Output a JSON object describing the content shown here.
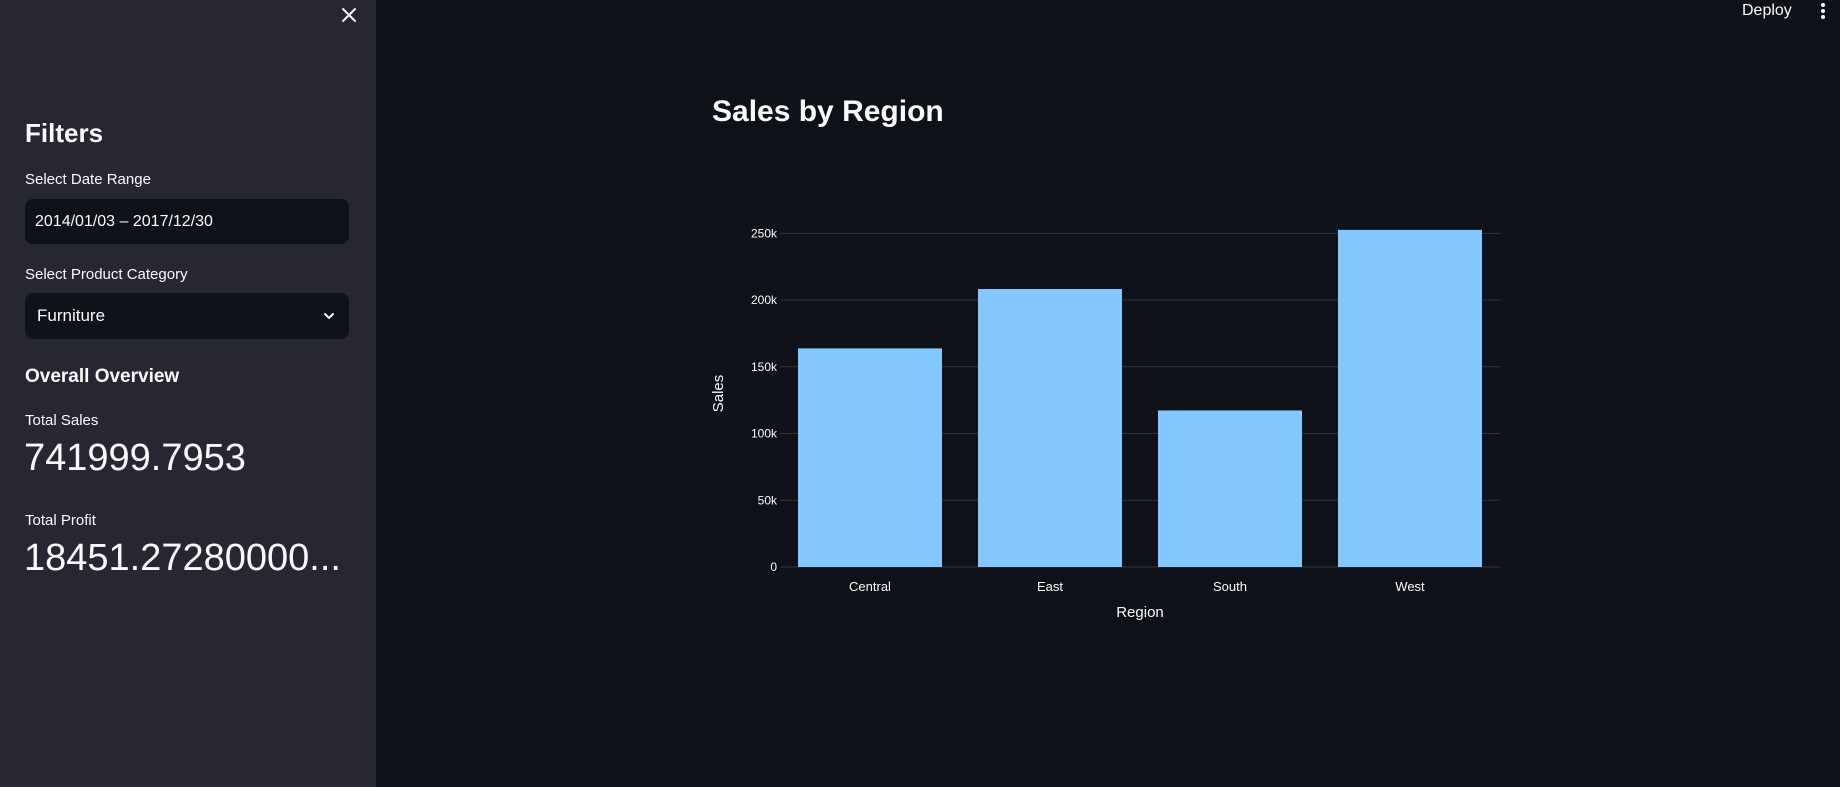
{
  "sidebar": {
    "heading": "Filters",
    "date_range": {
      "label": "Select Date Range",
      "value": "2014/01/03 – 2017/12/30"
    },
    "category": {
      "label": "Select Product Category",
      "selected": "Furniture"
    },
    "overview": {
      "heading": "Overall Overview",
      "total_sales_label": "Total Sales",
      "total_sales_value": "741999.7953",
      "total_profit_label": "Total Profit",
      "total_profit_value": "18451.27280000..."
    }
  },
  "header": {
    "deploy_label": "Deploy"
  },
  "main": {
    "title": "Sales by Region"
  },
  "colors": {
    "bar": "#83c9ff",
    "sidebar_bg": "#262730",
    "main_bg": "#0e1117",
    "grid": "#31333f"
  },
  "icons": {
    "close": "close-icon",
    "menu": "kebab-menu-icon",
    "dropdown": "chevron-down-icon"
  },
  "chart_data": {
    "type": "bar",
    "categories": [
      "Central",
      "East",
      "South",
      "West"
    ],
    "values": [
      163800,
      208300,
      117300,
      252600
    ],
    "xlabel": "Region",
    "ylabel": "Sales",
    "ylim": [
      0,
      260000
    ],
    "yticks": [
      0,
      50000,
      100000,
      150000,
      200000,
      250000
    ],
    "ytick_labels": [
      "0",
      "50k",
      "100k",
      "150k",
      "200k",
      "250k"
    ],
    "grid": true
  }
}
